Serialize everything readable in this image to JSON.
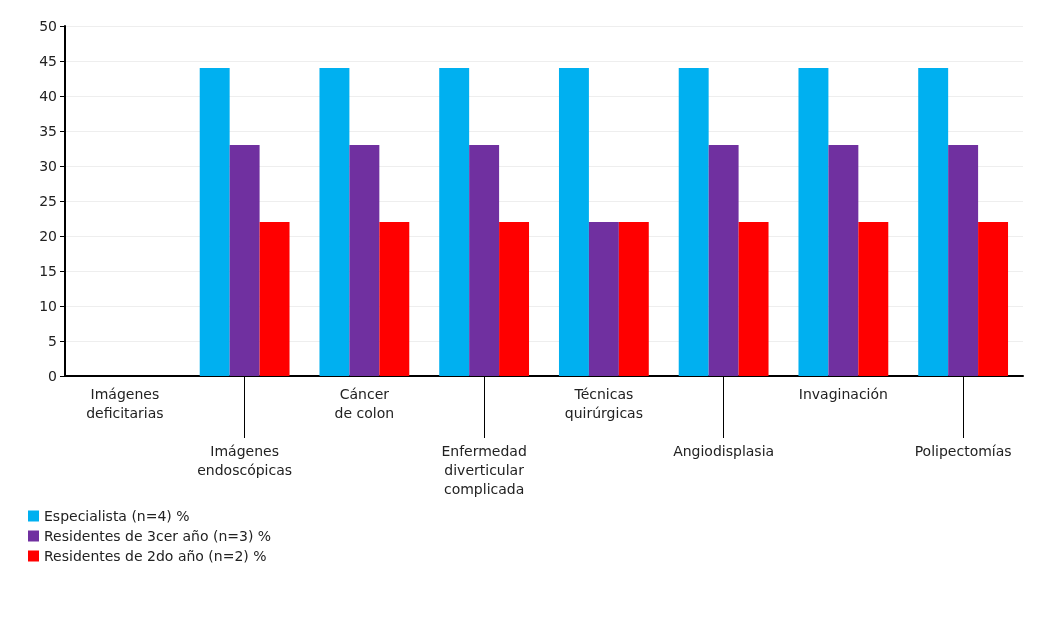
{
  "chart_data": {
    "type": "bar",
    "categories": [
      "Imágenes\ndeficitarias",
      "Imágenes\nendoscópicas",
      "Cáncer\nde colon",
      "Enfermedad\ndiverticular\ncomplicada",
      "Técnicas\nquirúrgicas",
      "Angiodisplasia",
      "Invaginación",
      "Polipectomías"
    ],
    "series": [
      {
        "name": "Especialista (n=4) %",
        "color": "#00b0f0",
        "values": [
          0,
          44,
          44,
          44,
          44,
          44,
          44,
          44
        ]
      },
      {
        "name": "Residentes de 3cer año (n=3) %",
        "color": "#7030a0",
        "values": [
          0,
          33,
          33,
          33,
          22,
          33,
          33,
          33
        ]
      },
      {
        "name": "Residentes de 2do año (n=2) %",
        "color": "#ff0000",
        "values": [
          0,
          22,
          22,
          22,
          22,
          22,
          22,
          22
        ]
      }
    ],
    "ylim": [
      0,
      50
    ],
    "yticks": [
      0,
      5,
      10,
      15,
      20,
      25,
      30,
      35,
      40,
      45,
      50
    ],
    "grid": "y",
    "legend": "bottom left"
  }
}
